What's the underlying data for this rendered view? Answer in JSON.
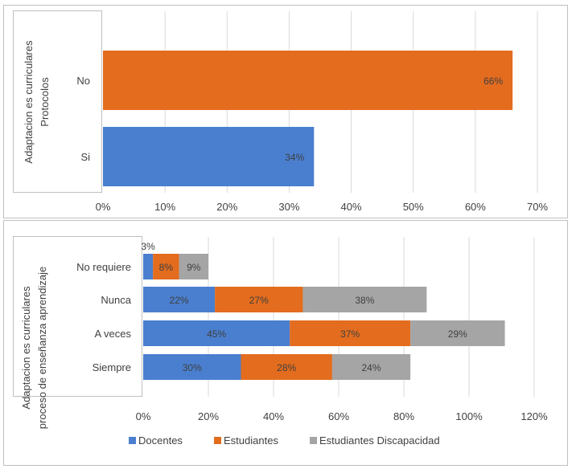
{
  "chart_data": [
    {
      "type": "bar",
      "orientation": "horizontal",
      "ylabel_lines": [
        "Adaptacion es curriculares",
        "Protocolos"
      ],
      "categories": [
        "No",
        "Si"
      ],
      "series": [
        {
          "values": [
            66,
            34
          ],
          "colors": [
            "#e36c1e",
            "#4a7fcf"
          ],
          "labels": [
            "66%",
            "34%"
          ]
        }
      ],
      "xlim": [
        0,
        70
      ],
      "xticks": [
        "0%",
        "10%",
        "20%",
        "30%",
        "40%",
        "50%",
        "60%",
        "70%"
      ],
      "grid": true
    },
    {
      "type": "bar",
      "orientation": "horizontal",
      "stacked": true,
      "ylabel_lines": [
        "Adaptacion es curriculares",
        "proceso de enseñanza aprendizaje"
      ],
      "categories": [
        "No requiere",
        "Nunca",
        "A veces",
        "Siempre"
      ],
      "series": [
        {
          "name": "Docentes",
          "color": "#4a7fcf",
          "values": [
            3,
            22,
            45,
            30
          ],
          "labels": [
            "3%",
            "22%",
            "45%",
            "30%"
          ]
        },
        {
          "name": "Estudiantes",
          "color": "#e36c1e",
          "values": [
            8,
            27,
            37,
            28
          ],
          "labels": [
            "8%",
            "27%",
            "37%",
            "28%"
          ]
        },
        {
          "name": "Estudiantes Discapacidad",
          "color": "#a5a5a5",
          "values": [
            9,
            38,
            29,
            24
          ],
          "labels": [
            "9%",
            "38%",
            "29%",
            "24%"
          ]
        }
      ],
      "xlim": [
        0,
        120
      ],
      "xticks": [
        "0%",
        "20%",
        "40%",
        "60%",
        "80%",
        "100%",
        "120%"
      ],
      "grid": true,
      "legend_position": "bottom"
    }
  ]
}
